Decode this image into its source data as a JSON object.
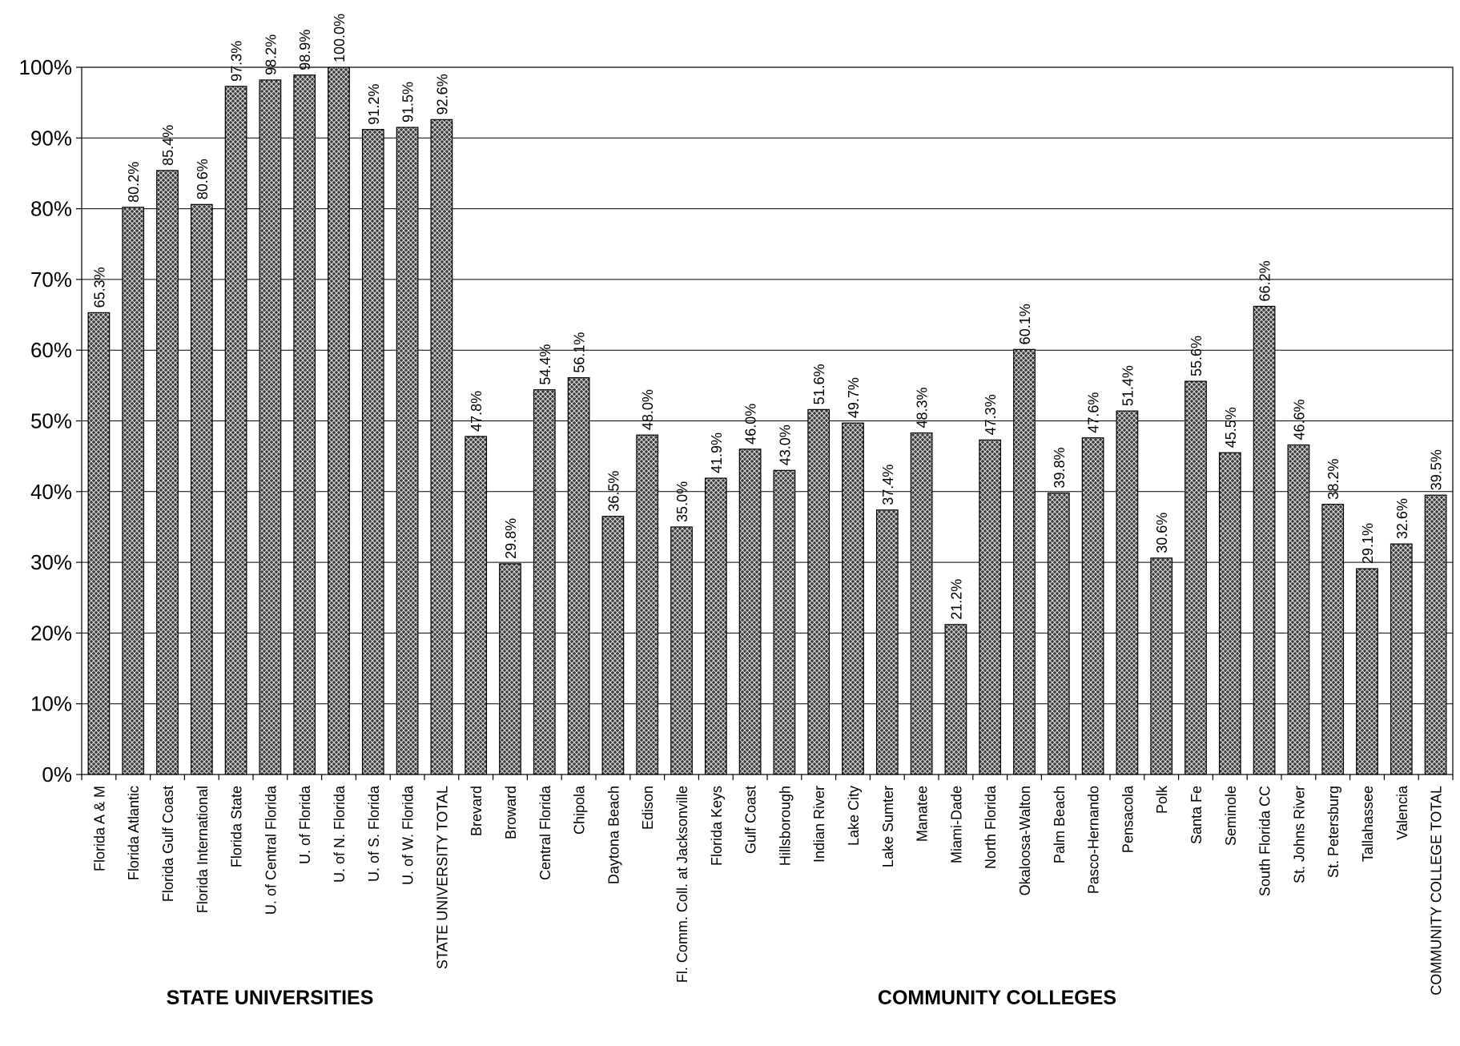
{
  "chart_data": {
    "type": "bar",
    "title": "",
    "xlabel": "",
    "ylabel": "",
    "ylim": [
      0,
      1
    ],
    "grid": true,
    "legend": "none",
    "bar_color": "#4a4a4a",
    "y_ticks": [
      "0%",
      "10%",
      "20%",
      "30%",
      "40%",
      "50%",
      "60%",
      "70%",
      "80%",
      "90%",
      "100%"
    ],
    "categories": [
      "Florida A & M",
      "Florida Atlantic",
      "Florida Gulf Coast",
      "Florida International",
      "Florida State",
      "U. of Central Florida",
      "U. of Florida",
      "U. of N. Florida",
      "U. of S. Florida",
      "U. of W. Florida",
      "STATE UNIVERSITY TOTAL",
      "Brevard",
      "Broward",
      "Central Florida",
      "Chipola",
      "Daytona Beach",
      "Edison",
      "Fl. Comm. Coll. at Jacksonville",
      "Florida Keys",
      "Gulf Coast",
      "Hillsborough",
      "Indian River",
      "Lake City",
      "Lake Sumter",
      "Manatee",
      "Miami-Dade",
      "North Florida",
      "Okaloosa-Walton",
      "Palm Beach",
      "Pasco-Hernando",
      "Pensacola",
      "Polk",
      "Santa Fe",
      "Seminole",
      "South Florida CC",
      "St. Johns River",
      "St. Petersburg",
      "Tallahassee",
      "Valencia",
      "COMMUNITY COLLEGE TOTAL"
    ],
    "values": [
      0.653,
      0.802,
      0.854,
      0.806,
      0.973,
      0.982,
      0.989,
      1.0,
      0.912,
      0.915,
      0.926,
      0.478,
      0.298,
      0.544,
      0.561,
      0.365,
      0.48,
      0.35,
      0.419,
      0.46,
      0.43,
      0.516,
      0.497,
      0.374,
      0.483,
      0.212,
      0.473,
      0.601,
      0.398,
      0.476,
      0.514,
      0.306,
      0.556,
      0.455,
      0.662,
      0.466,
      0.382,
      0.291,
      0.326,
      0.395
    ],
    "data_labels": [
      "65.3%",
      "80.2%",
      "85.4%",
      "80.6%",
      "97.3%",
      "98.2%",
      "98.9%",
      "100.0%",
      "91.2%",
      "91.5%",
      "92.6%",
      "47.8%",
      "29.8%",
      "54.4%",
      "56.1%",
      "36.5%",
      "48.0%",
      "35.0%",
      "41.9%",
      "46.0%",
      "43.0%",
      "51.6%",
      "49.7%",
      "37.4%",
      "48.3%",
      "21.2%",
      "47.3%",
      "60.1%",
      "39.8%",
      "47.6%",
      "51.4%",
      "30.6%",
      "55.6%",
      "45.5%",
      "66.2%",
      "46.6%",
      "38.2%",
      "29.1%",
      "32.6%",
      "39.5%"
    ],
    "groups": [
      "STATE UNIVERSITIES",
      "COMMUNITY COLLEGES"
    ]
  }
}
